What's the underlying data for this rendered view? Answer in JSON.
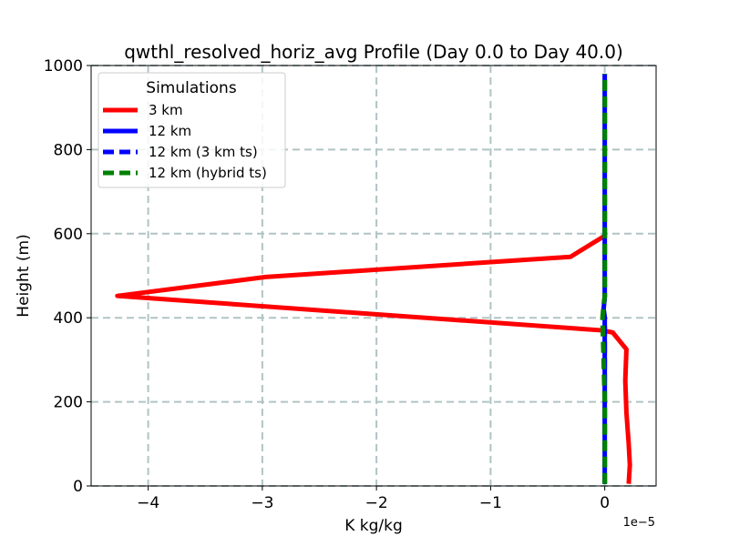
{
  "chart_data": {
    "type": "line",
    "title": "qwthl_resolved_horiz_avg Profile (Day 0.0 to Day 40.0)",
    "xlabel": "K kg/kg",
    "ylabel": "Height (m)",
    "x_multiplier_label": "1e−5",
    "x_scale": 1e-05,
    "xlim": [
      -4.5e-05,
      4.5e-06
    ],
    "ylim": [
      0,
      1000
    ],
    "x_ticks": [
      -4e-05,
      -3e-05,
      -2e-05,
      -1e-05,
      0
    ],
    "x_tick_labels": [
      "−4",
      "−3",
      "−2",
      "−1",
      "0"
    ],
    "y_ticks": [
      0,
      200,
      400,
      600,
      800,
      1000
    ],
    "y_tick_labels": [
      "0",
      "200",
      "400",
      "600",
      "800",
      "1000"
    ],
    "grid": true,
    "legend": {
      "title": "Simulations",
      "placement": "top-left"
    },
    "series": [
      {
        "name": "3 km",
        "color": "#ff0000",
        "dash": "solid",
        "points": [
          [
            2.1e-06,
            5
          ],
          [
            2.2e-06,
            50
          ],
          [
            2.1e-06,
            100
          ],
          [
            1.9e-06,
            175
          ],
          [
            1.8e-06,
            250
          ],
          [
            1.9e-06,
            325
          ],
          [
            7e-07,
            365
          ],
          [
            -2e-07,
            370
          ],
          [
            -4.27e-05,
            452
          ],
          [
            -2.97e-05,
            497
          ],
          [
            -3e-06,
            545
          ],
          [
            0.0,
            595
          ]
        ]
      },
      {
        "name": "12 km",
        "color": "#0000ff",
        "dash": "solid",
        "points": [
          [
            0,
            5
          ],
          [
            0,
            200
          ],
          [
            0,
            400
          ],
          [
            -1e-07,
            420
          ],
          [
            0,
            450
          ],
          [
            0,
            600
          ],
          [
            0,
            800
          ],
          [
            0,
            980
          ]
        ]
      },
      {
        "name": "12 km (3 km ts)",
        "color": "#0000ff",
        "dash": "dashed",
        "points": [
          [
            0,
            5
          ],
          [
            0,
            200
          ],
          [
            0,
            400
          ],
          [
            -1e-07,
            420
          ],
          [
            0,
            450
          ],
          [
            0,
            600
          ],
          [
            0,
            800
          ],
          [
            0,
            980
          ]
        ]
      },
      {
        "name": "12 km (hybrid ts)",
        "color": "#008000",
        "dash": "dashed",
        "points": [
          [
            0,
            5
          ],
          [
            0,
            200
          ],
          [
            -2e-07,
            400
          ],
          [
            -1e-07,
            430
          ],
          [
            0,
            450
          ],
          [
            0,
            600
          ],
          [
            0,
            800
          ],
          [
            0,
            980
          ]
        ]
      }
    ]
  }
}
